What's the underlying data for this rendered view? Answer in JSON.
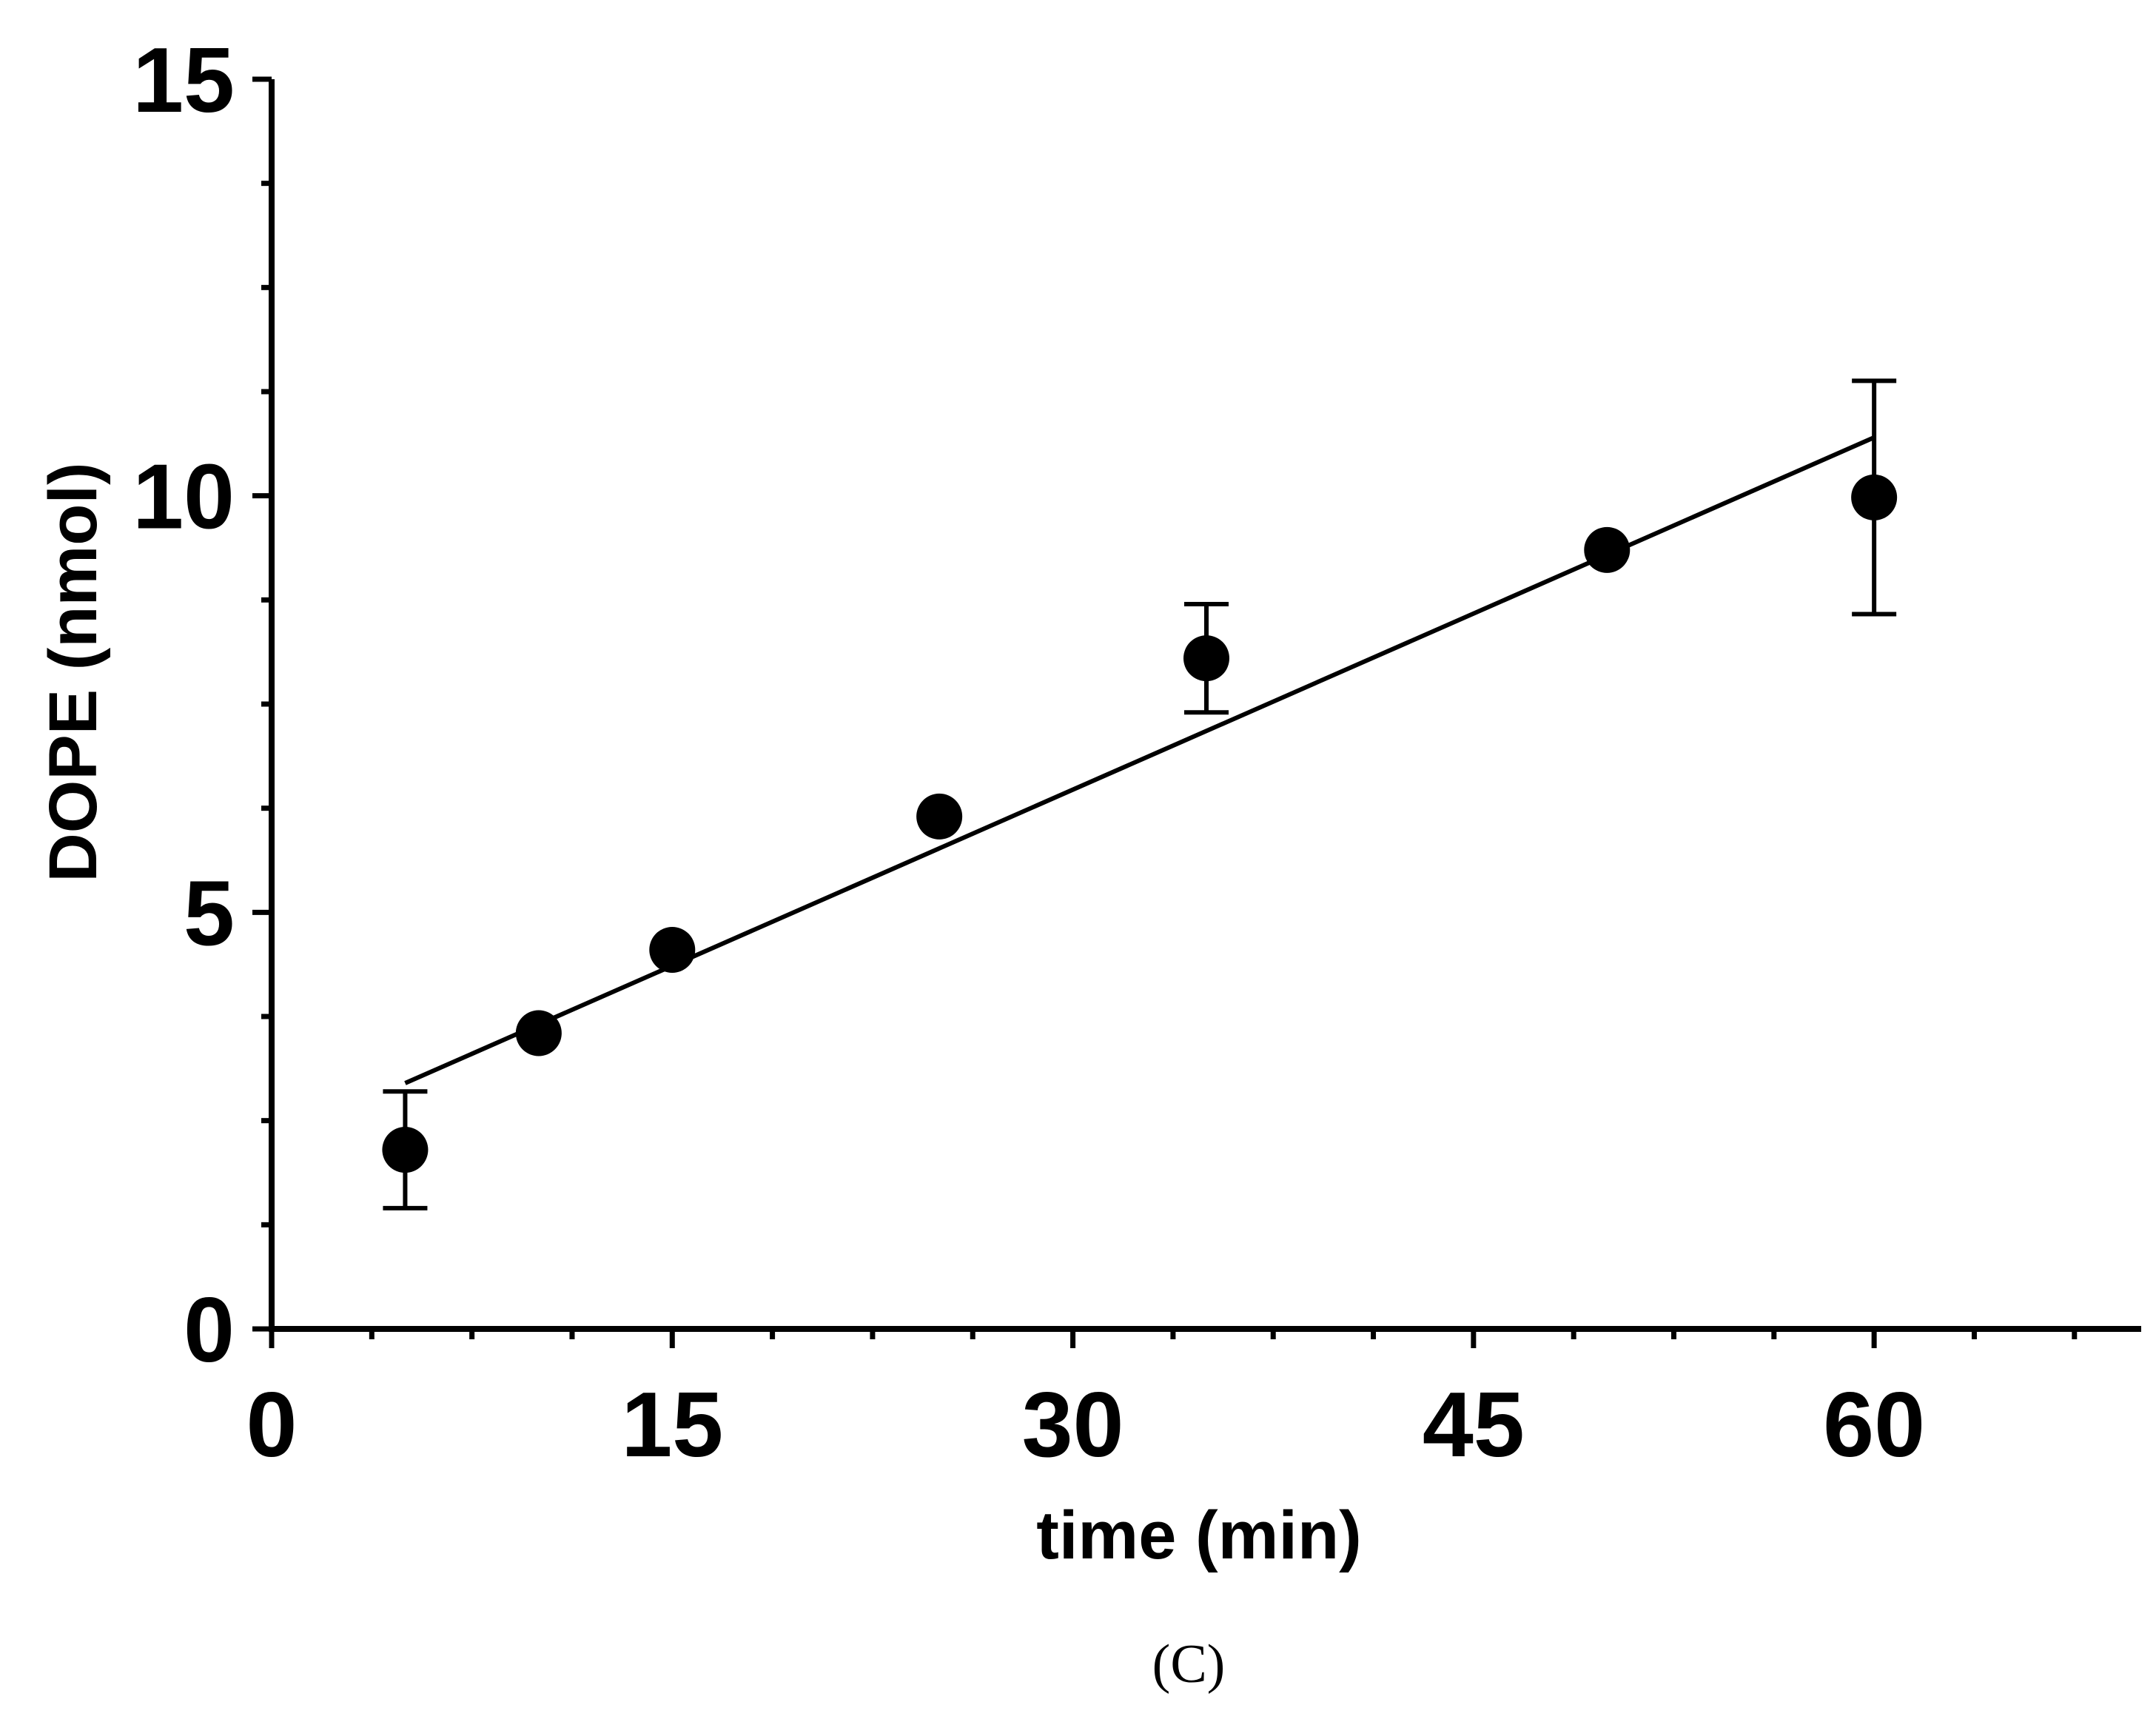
{
  "chart_data": {
    "type": "scatter",
    "panel_label": "(C)",
    "xlabel": "time (min)",
    "ylabel": "DOPE (nmol)",
    "xlim": [
      0,
      70
    ],
    "ylim": [
      0,
      15
    ],
    "x_major_ticks": [
      0,
      15,
      30,
      45,
      60
    ],
    "x_tick_labels": [
      "0",
      "15",
      "30",
      "45",
      "60"
    ],
    "x_minor_tick_step": 3.75,
    "y_major_ticks": [
      0,
      5,
      10,
      15
    ],
    "y_tick_labels": [
      "0",
      "5",
      "10",
      "15"
    ],
    "y_minor_tick_step": 1.25,
    "grid": false,
    "series": [
      {
        "name": "DOPE",
        "x": [
          5,
          10,
          15,
          25,
          35,
          50,
          60
        ],
        "y": [
          2.15,
          3.55,
          4.55,
          6.15,
          8.05,
          9.35,
          9.98
        ],
        "error": [
          0.7,
          0,
          0,
          0,
          0.65,
          0,
          1.4
        ]
      }
    ],
    "fit_line": {
      "type": "linear",
      "x": [
        5,
        60
      ],
      "y": [
        2.95,
        10.7
      ]
    },
    "colors": {
      "marker": "#000000",
      "line": "#000000",
      "axis": "#000000"
    }
  }
}
